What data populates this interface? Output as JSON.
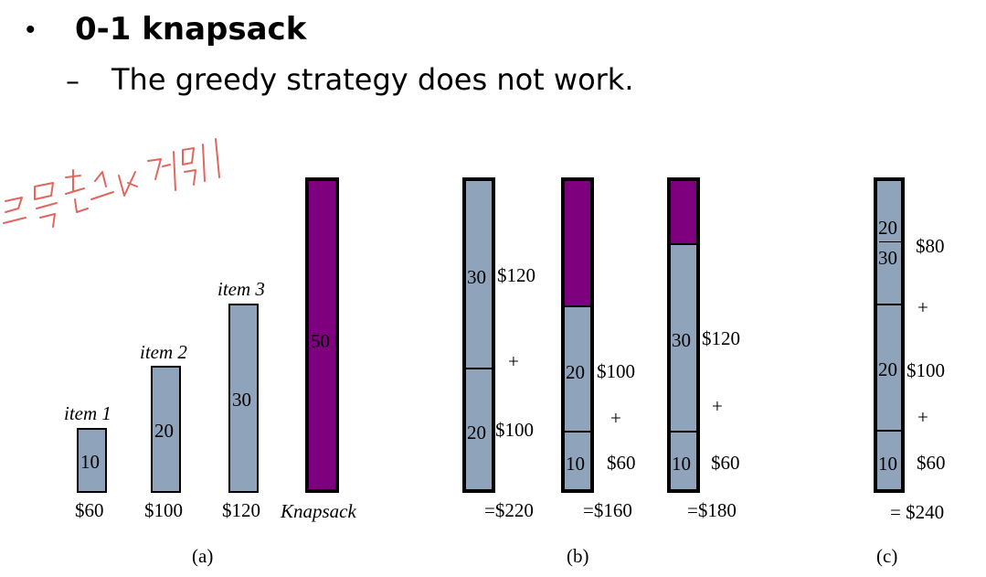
{
  "header": {
    "bullet": "•",
    "title": "0-1 knapsack",
    "dash": "–",
    "subtitle": "The greedy strategy does not work."
  },
  "annotation": {
    "description": "red handwritten note (Korean), rendered as strokes",
    "color": "#e0675f"
  },
  "colors": {
    "item_fill": "#8fa3bb",
    "knapsack_fill": "#7e007e"
  },
  "panel_a": {
    "caption": "(a)",
    "items": [
      {
        "label": "item 1",
        "weight": "10",
        "value": "$60"
      },
      {
        "label": "item 2",
        "weight": "20",
        "value": "$100"
      },
      {
        "label": "item 3",
        "weight": "30",
        "value": "$120"
      }
    ],
    "knapsack": {
      "capacity": "50",
      "label": "Knapsack"
    }
  },
  "panel_b": {
    "caption": "(b)",
    "options": [
      {
        "top_weight": "30",
        "top_value": "$120",
        "plus": "+",
        "bottom_weight": "20",
        "bottom_value": "$100",
        "total": "=$220"
      },
      {
        "top_weight": "20",
        "top_value": "$100",
        "plus": "+",
        "bottom_weight": "10",
        "bottom_value": "$60",
        "total": "=$160"
      },
      {
        "top_weight": "30",
        "top_value": "$120",
        "plus": "+",
        "bottom_weight": "10",
        "bottom_value": "$60",
        "total": "=$180"
      }
    ]
  },
  "panel_c": {
    "caption": "(c)",
    "fraction_num": "20",
    "fraction_den": "30",
    "fraction_value": "$80",
    "plus1": "+",
    "mid_weight": "20",
    "mid_value": "$100",
    "plus2": "+",
    "bottom_weight": "10",
    "bottom_value": "$60",
    "total": "= $240"
  }
}
